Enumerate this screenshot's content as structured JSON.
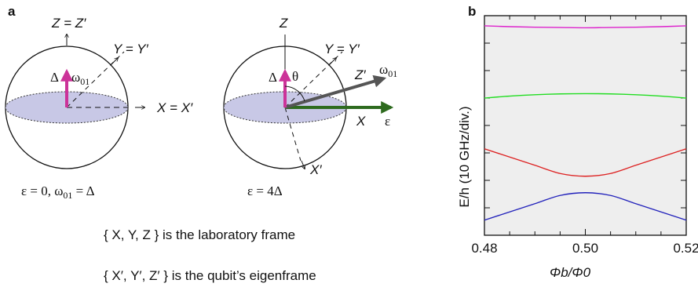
{
  "panel_a": {
    "label": "a",
    "left_sphere": {
      "z_axis": "Z = Z′",
      "y_axis": "Y = Y′",
      "x_axis": "X = X′",
      "delta": "Δ",
      "omega": "ω",
      "omega_sub": "01",
      "condition": "ε = 0,  ω",
      "condition_sub": "01",
      "condition_tail": " = Δ"
    },
    "right_sphere": {
      "z_axis": "Z",
      "y_axis": "Y = Y′",
      "z_prime": "Z′",
      "x_axis": "X",
      "x_prime": "X′",
      "theta": "θ",
      "delta": "Δ",
      "omega": "ω",
      "omega_sub": "01",
      "epsilon": "ε",
      "condition": "ε = 4Δ"
    },
    "caption_lab": "{ X, Y, Z } is the laboratory frame",
    "caption_eigen": "{ X′, Y′, Z′ } is the qubit’s eigenframe"
  },
  "panel_b": {
    "label": "b"
  },
  "colors": {
    "delta_arrow": "#cc3399",
    "omega_arrow": "#555555",
    "epsilon_arrow": "#2e6b1f",
    "disc_fill": "#c8c8e6",
    "plot_bg": "#eeeeee"
  },
  "chart_data": {
    "type": "line",
    "xlabel": "Φb/Φ0",
    "ylabel": "E/h  (10 GHz/div.)",
    "x_ticks": [
      "0.48",
      "0.50",
      "0.52"
    ],
    "xlim": [
      0.48,
      0.52
    ],
    "ylim": [
      0,
      8
    ],
    "y_gridlines": [
      1,
      2,
      3,
      4,
      5,
      6,
      7
    ],
    "grid": false,
    "x": [
      0.48,
      0.485,
      0.49,
      0.495,
      0.5,
      0.505,
      0.51,
      0.515,
      0.52
    ],
    "series": [
      {
        "color": "#2222bb",
        "values": [
          0.55,
          0.85,
          1.15,
          1.45,
          1.55,
          1.45,
          1.15,
          0.85,
          0.55
        ]
      },
      {
        "color": "#dd2222",
        "values": [
          3.15,
          2.85,
          2.55,
          2.25,
          2.15,
          2.25,
          2.55,
          2.85,
          3.15
        ]
      },
      {
        "color": "#22dd22",
        "values": [
          5.0,
          5.07,
          5.12,
          5.15,
          5.16,
          5.15,
          5.12,
          5.07,
          5.0
        ]
      },
      {
        "color": "#dd22cc",
        "values": [
          7.63,
          7.6,
          7.58,
          7.57,
          7.56,
          7.57,
          7.58,
          7.6,
          7.63
        ]
      }
    ]
  }
}
